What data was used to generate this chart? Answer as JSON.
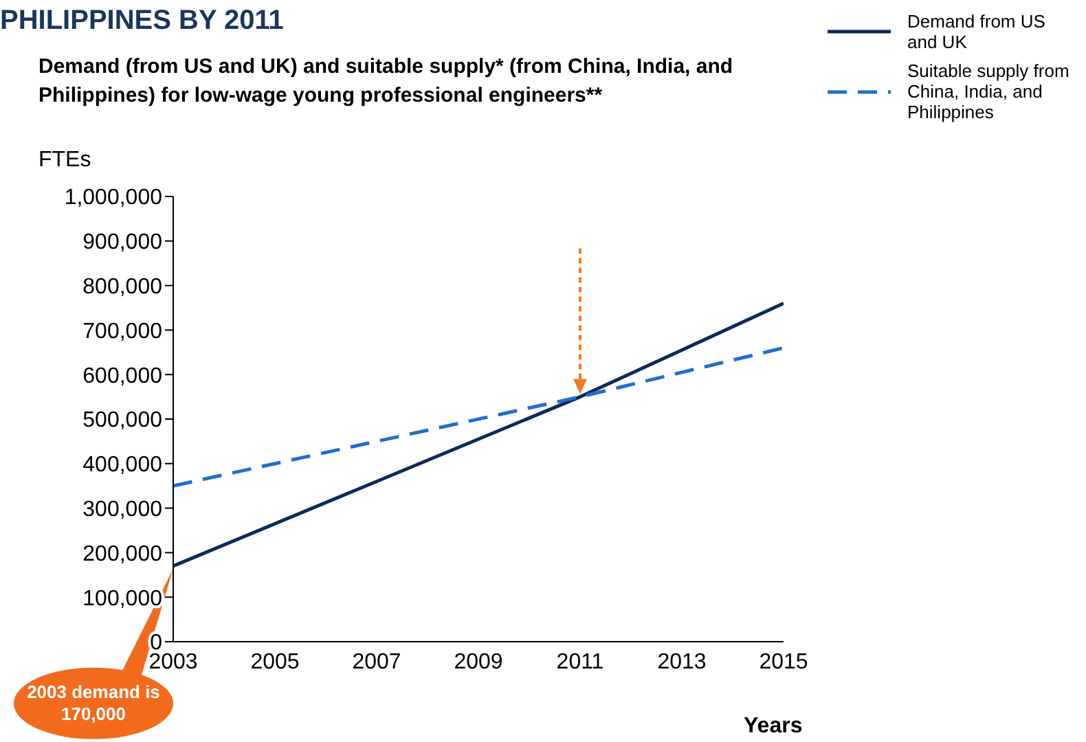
{
  "chart_data": {
    "type": "line",
    "title": "PHILIPPINES BY 2011",
    "subtitle": "Demand (from US and UK) and suitable supply* (from China, India, and Philippines) for low-wage young professional engineers**",
    "ylabel": "FTEs",
    "xlabel": "Years",
    "xlim": [
      2003,
      2015
    ],
    "xticks": [
      2003,
      2005,
      2007,
      2009,
      2011,
      2013,
      2015
    ],
    "ylim": [
      0,
      1000000
    ],
    "yticks": [
      {
        "value": 0,
        "label": "0"
      },
      {
        "value": 100000,
        "label": "100,000"
      },
      {
        "value": 200000,
        "label": "200,000"
      },
      {
        "value": 300000,
        "label": "300,000"
      },
      {
        "value": 400000,
        "label": "400,000"
      },
      {
        "value": 500000,
        "label": "500,000"
      },
      {
        "value": 600000,
        "label": "600,000"
      },
      {
        "value": 700000,
        "label": "700,000"
      },
      {
        "value": 800000,
        "label": "800,000"
      },
      {
        "value": 900000,
        "label": "900,000"
      },
      {
        "value": 1000000,
        "label": "1,000,000"
      }
    ],
    "series": [
      {
        "name": "Demand from US and UK",
        "color": "#0d2a5c",
        "line_style": "solid",
        "x": [
          2003,
          2011,
          2015
        ],
        "values": [
          170000,
          550000,
          760000
        ]
      },
      {
        "name": "Suitable supply from China, India, and Philippines",
        "color": "#1f6fd1",
        "line_style": "dashed",
        "x": [
          2003,
          2011,
          2015
        ],
        "values": [
          350000,
          550000,
          660000
        ]
      }
    ],
    "annotations": [
      {
        "text": "2003 demand is 170,000",
        "x": 2003,
        "y": 170000
      }
    ],
    "grid": false,
    "legend": "top right",
    "marker": "none"
  }
}
